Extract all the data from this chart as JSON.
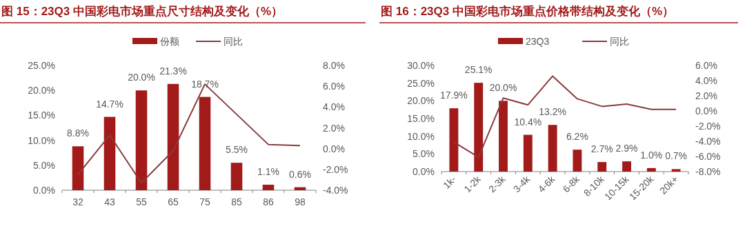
{
  "chart_data": [
    {
      "type": "bar",
      "title": "图 15：23Q3 中国彩电市场重点尺寸结构及变化（%）",
      "categories": [
        "32",
        "43",
        "55",
        "65",
        "75",
        "85",
        "86",
        "98"
      ],
      "series": [
        {
          "name": "份额",
          "color": "#a21a1a",
          "values": [
            8.8,
            14.7,
            20.0,
            21.3,
            18.7,
            5.5,
            1.1,
            0.6
          ],
          "value_labels": [
            "8.8%",
            "14.7%",
            "20.0%",
            "21.3%",
            "18.7%",
            "5.5%",
            "1.1%",
            "0.6%"
          ]
        },
        {
          "name": "同比",
          "type": "line",
          "axis": "y2",
          "color": "#8b3a3a",
          "values": [
            -2.5,
            1.3,
            -3.3,
            -0.2,
            6.2,
            3.3,
            0.4,
            0.3
          ]
        }
      ],
      "ylim": [
        0,
        25
      ],
      "yticks": [
        {
          "value": 0,
          "label": "0.0%"
        },
        {
          "value": 5,
          "label": "5.0%"
        },
        {
          "value": 10,
          "label": "10.0%"
        },
        {
          "value": 15,
          "label": "15.0%"
        },
        {
          "value": 20,
          "label": "20.0%"
        },
        {
          "value": 25,
          "label": "25.0%"
        }
      ],
      "y2lim": [
        -4,
        8
      ],
      "y2ticks": [
        {
          "value": -4,
          "label": "-4.0%"
        },
        {
          "value": -2,
          "label": "-2.0%"
        },
        {
          "value": 0,
          "label": "0.0%"
        },
        {
          "value": 2,
          "label": "2.0%"
        },
        {
          "value": 4,
          "label": "4.0%"
        },
        {
          "value": 6,
          "label": "6.0%"
        },
        {
          "value": 8,
          "label": "8.0%"
        }
      ],
      "legend": "top",
      "marker": "none",
      "line_style": "solid"
    },
    {
      "type": "bar",
      "title": "图 16：23Q3 中国彩电市场重点价格带结构及变化（%）",
      "categories": [
        "1k-",
        "1-2k",
        "2-3k",
        "3-4k",
        "4-6k",
        "6-8k",
        "8-10k",
        "10-15k",
        "15-20k",
        "20k+"
      ],
      "series": [
        {
          "name": "23Q3",
          "color": "#a21a1a",
          "values": [
            17.9,
            25.1,
            20.0,
            10.4,
            13.2,
            6.2,
            2.7,
            2.9,
            1.0,
            0.7
          ],
          "value_labels": [
            "17.9%",
            "25.1%",
            "20.0%",
            "10.4%",
            "13.2%",
            "6.2%",
            "2.7%",
            "2.9%",
            "1.0%",
            "0.7%"
          ]
        },
        {
          "name": "同比",
          "type": "line",
          "axis": "y2",
          "color": "#8b3a3a",
          "values": [
            -4.1,
            -6.1,
            1.7,
            0.8,
            4.6,
            1.6,
            0.6,
            0.9,
            0.2,
            0.2
          ]
        }
      ],
      "ylim": [
        0,
        30
      ],
      "yticks": [
        {
          "value": 0,
          "label": "0.0%"
        },
        {
          "value": 5,
          "label": "5.0%"
        },
        {
          "value": 10,
          "label": "10.0%"
        },
        {
          "value": 15,
          "label": "15.0%"
        },
        {
          "value": 20,
          "label": "20.0%"
        },
        {
          "value": 25,
          "label": "25.0%"
        },
        {
          "value": 30,
          "label": "30.0%"
        }
      ],
      "y2lim": [
        -8,
        6
      ],
      "y2ticks": [
        {
          "value": -8,
          "label": "-8.0%"
        },
        {
          "value": -6,
          "label": "-6.0%"
        },
        {
          "value": -4,
          "label": "-4.0%"
        },
        {
          "value": -2,
          "label": "-2.0%"
        },
        {
          "value": 0,
          "label": "0.0%"
        },
        {
          "value": 2,
          "label": "2.0%"
        },
        {
          "value": 4,
          "label": "4.0%"
        },
        {
          "value": 6,
          "label": "6.0%"
        }
      ],
      "legend": "top",
      "marker": "none",
      "line_style": "solid"
    }
  ]
}
